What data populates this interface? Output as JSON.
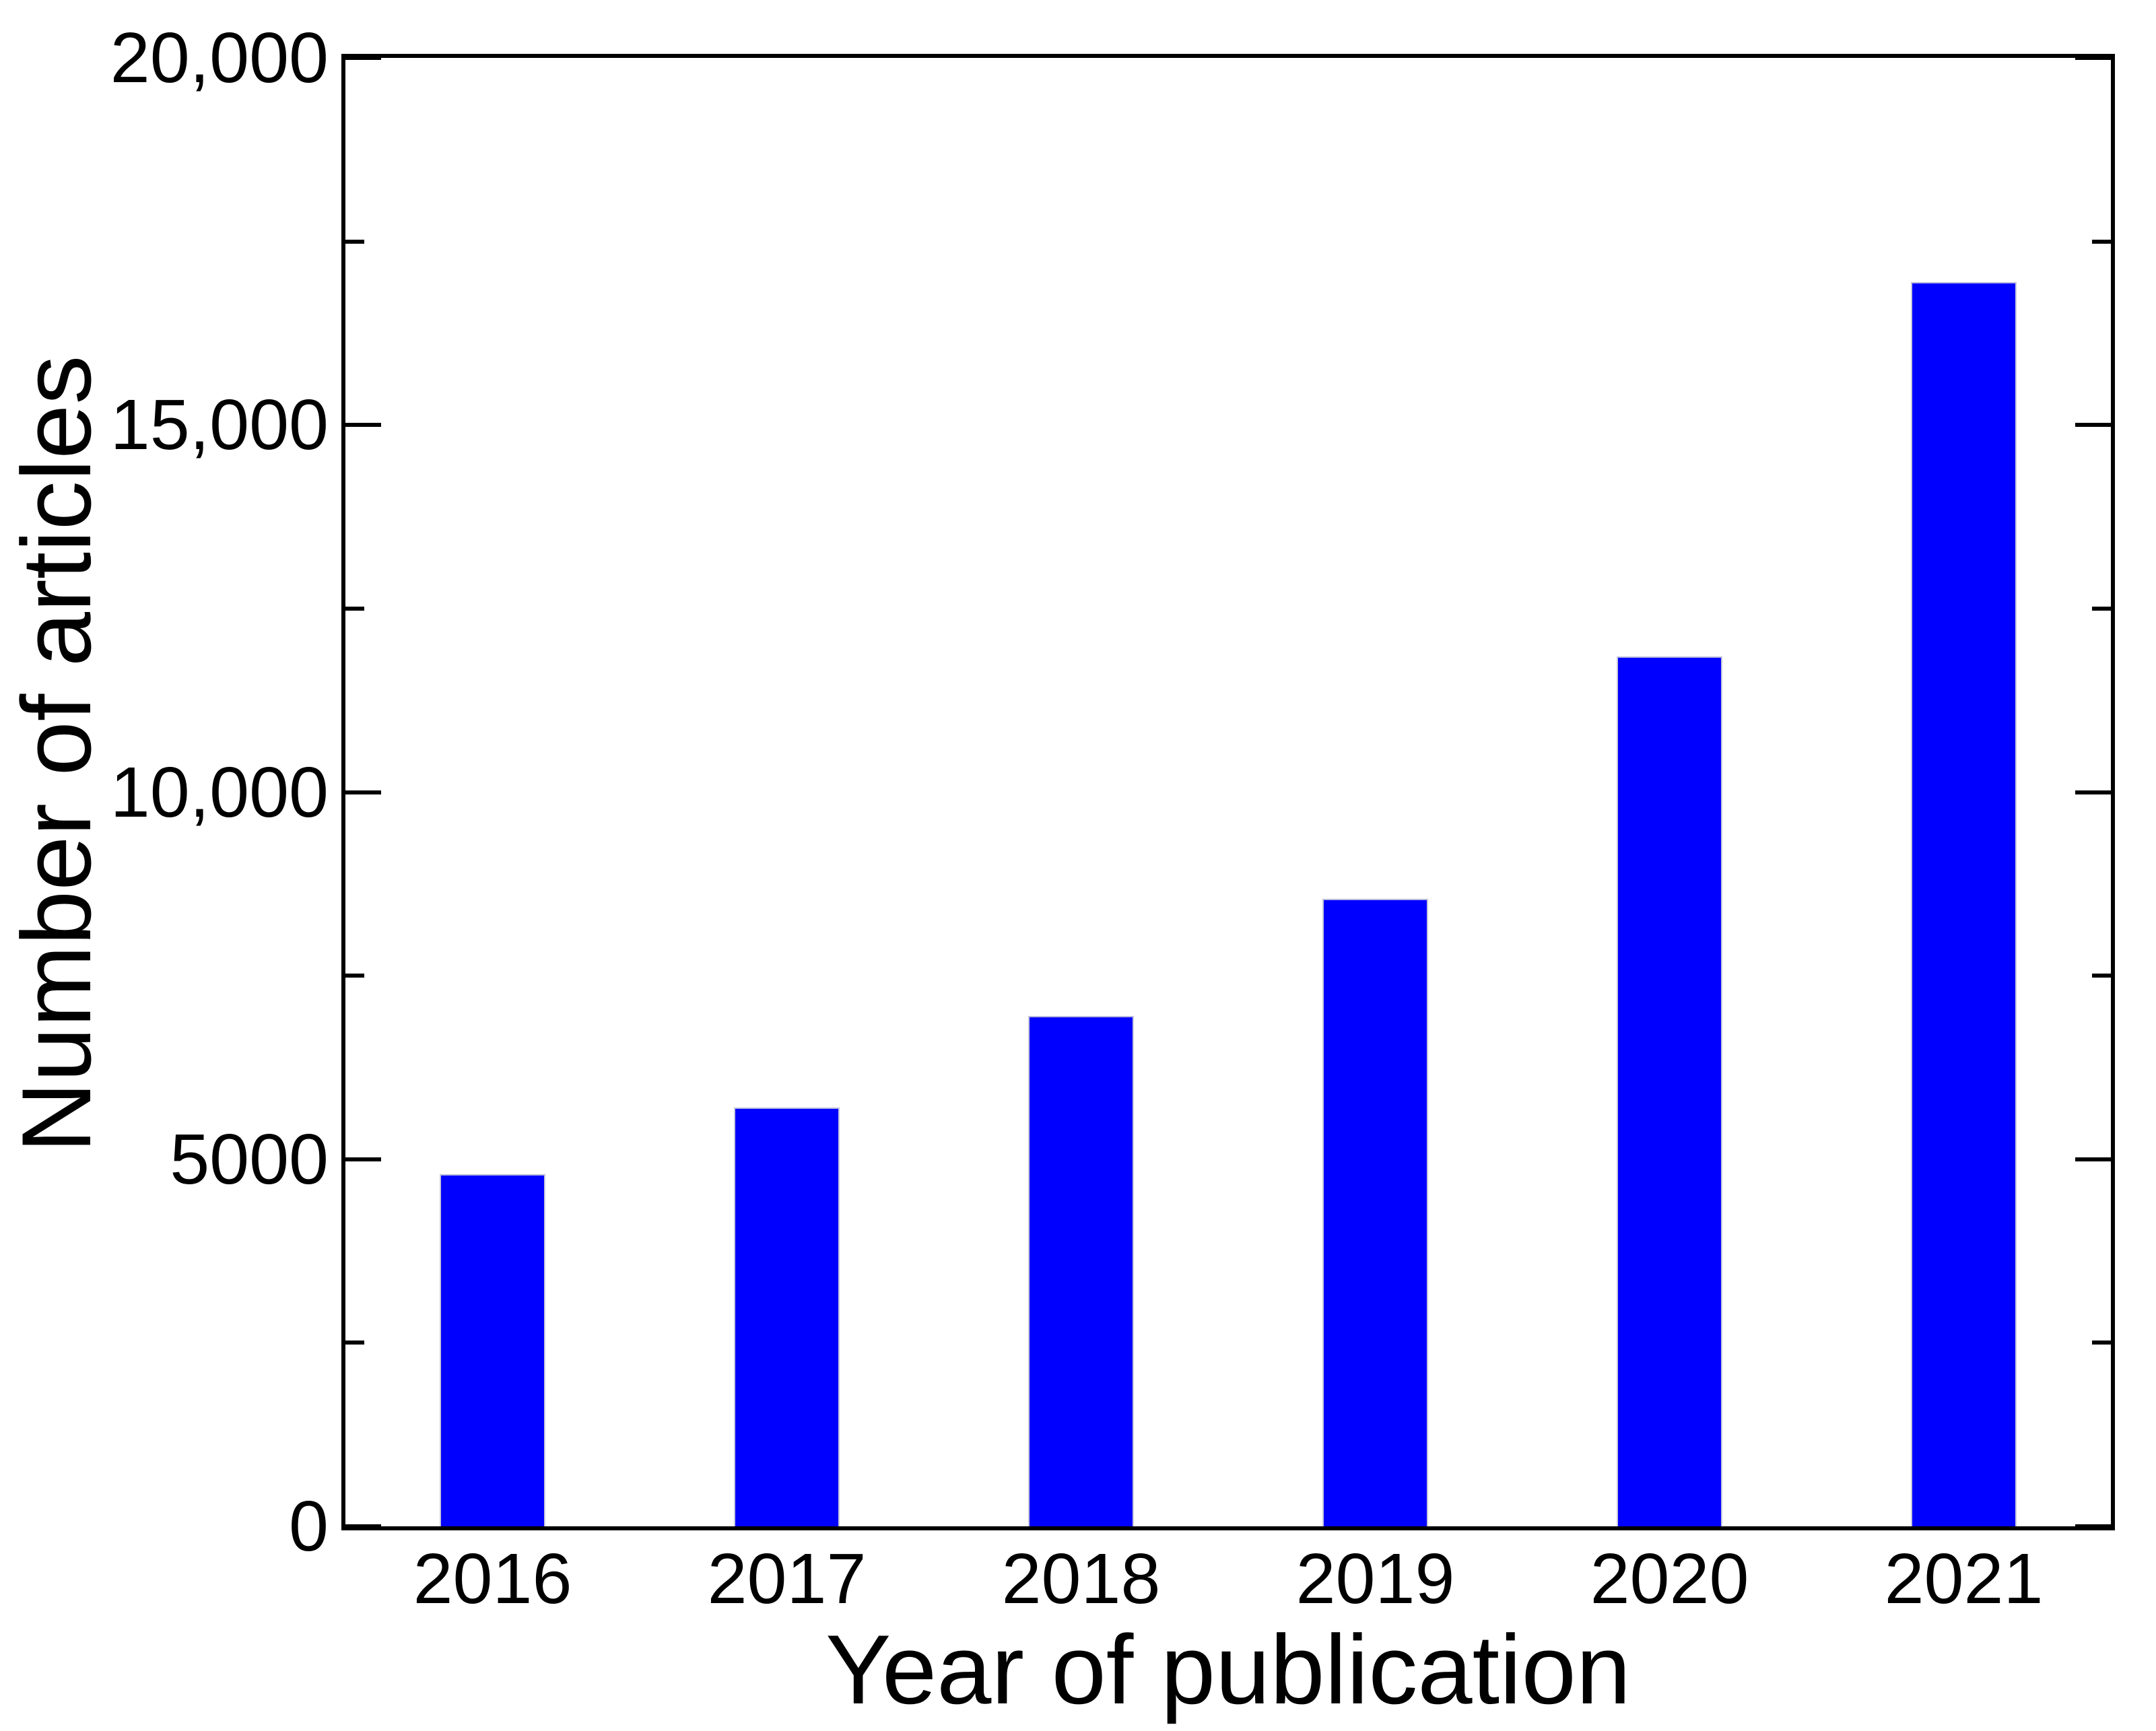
{
  "chart_data": {
    "type": "bar",
    "title": "",
    "categories": [
      "2016",
      "2017",
      "2018",
      "2019",
      "2020",
      "2021"
    ],
    "values": [
      4800,
      5700,
      6950,
      8550,
      11850,
      16950
    ],
    "series_name": "Number of articles",
    "xlabel": "Year of publication",
    "ylabel": "Number of articles",
    "ylim": [
      0,
      20000
    ],
    "yticks_major": [
      {
        "value": 0,
        "label": "0"
      },
      {
        "value": 5000,
        "label": "5000"
      },
      {
        "value": 10000,
        "label": "10,000"
      },
      {
        "value": 15000,
        "label": "15,000"
      },
      {
        "value": 20000,
        "label": "20,000"
      }
    ],
    "yticks_minor": [
      2500,
      7500,
      12500,
      17500
    ],
    "grid": "off",
    "legend": "none",
    "bar_color": "#0000ff",
    "axis_color": "#000000",
    "background_color": "#ffffff",
    "tick_style": "inward, mirrored on right spine"
  }
}
